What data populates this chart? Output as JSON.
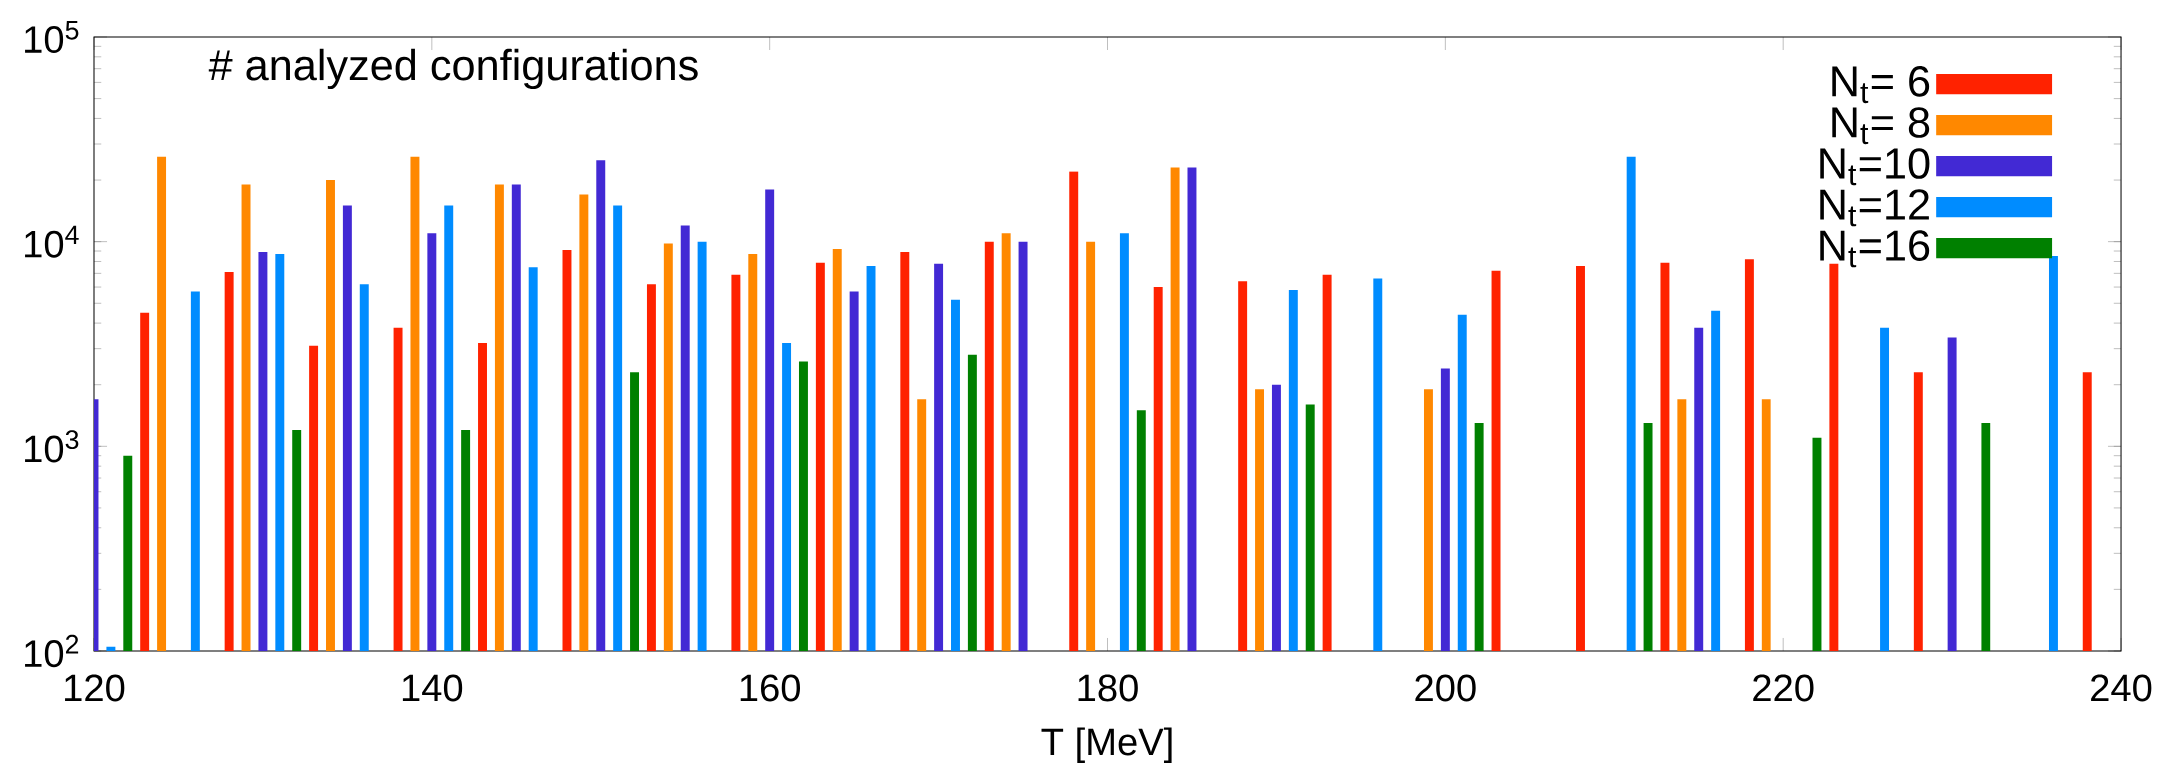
{
  "chart_data": {
    "type": "bar",
    "xlabel": "T [MeV]",
    "annotations": [
      "# analyzed configurations"
    ],
    "xlim": [
      120,
      240
    ],
    "xticks": [
      120,
      140,
      160,
      180,
      200,
      220,
      240
    ],
    "ylim": [
      100,
      100000
    ],
    "log": "y",
    "legend": "top right",
    "yticks": [
      {
        "value": 100,
        "label": "10$^{2}$"
      },
      {
        "value": 1000,
        "label": "10$^{3}$"
      },
      {
        "value": 10000,
        "label": "10$^{4}$"
      },
      {
        "value": 100000,
        "label": "10$^{5}$"
      }
    ],
    "series": [
      {
        "name": "N$_{t}$= 6",
        "color": "#ff2200",
        "x": [
          123,
          128,
          133,
          138,
          143,
          148,
          153,
          158,
          163,
          168,
          173,
          178,
          183,
          188,
          193,
          203,
          208,
          213,
          218,
          223,
          228,
          238
        ],
        "values": [
          4500,
          7100,
          3100,
          3800,
          3200,
          9100,
          6200,
          6900,
          7900,
          8900,
          10000,
          22000,
          6000,
          6400,
          6900,
          7200,
          7600,
          7900,
          8200,
          7800,
          2300,
          2300
        ]
      },
      {
        "name": "N$_{t}$= 8",
        "color": "#ff8800",
        "x": [
          124,
          129,
          134,
          139,
          144,
          149,
          154,
          159,
          164,
          169,
          174,
          179,
          184,
          189,
          199,
          214,
          219
        ],
        "values": [
          26000,
          19000,
          20000,
          26000,
          19000,
          17000,
          9800,
          8700,
          9200,
          1700,
          11000,
          10000,
          23000,
          1900,
          1900,
          1700,
          1700
        ]
      },
      {
        "name": "N$_{t}$=10",
        "color": "#4229d4",
        "x": [
          120,
          130,
          135,
          140,
          145,
          150,
          155,
          160,
          165,
          170,
          175,
          185,
          190,
          200,
          215,
          230
        ],
        "values": [
          1700,
          8900,
          15000,
          11000,
          19000,
          25000,
          12000,
          18000,
          5700,
          7800,
          10000,
          23000,
          2000,
          2400,
          3800,
          3400
        ]
      },
      {
        "name": "N$_{t}$=12",
        "color": "#008cff",
        "x": [
          121,
          126,
          131,
          136,
          141,
          146,
          151,
          156,
          161,
          166,
          171,
          181,
          191,
          196,
          201,
          211,
          216,
          226,
          236
        ],
        "values": [
          105,
          5700,
          8700,
          6200,
          15000,
          7500,
          15000,
          10000,
          3200,
          7600,
          5200,
          11000,
          5800,
          6600,
          4400,
          26000,
          4600,
          3800,
          8500
        ]
      },
      {
        "name": "N$_{t}$=16",
        "color": "#008000",
        "x": [
          122,
          132,
          142,
          152,
          162,
          172,
          182,
          192,
          202,
          212,
          222,
          232
        ],
        "values": [
          900,
          1200,
          1200,
          2300,
          2600,
          2800,
          1500,
          1600,
          1300,
          1300,
          1100,
          1300
        ]
      }
    ]
  }
}
